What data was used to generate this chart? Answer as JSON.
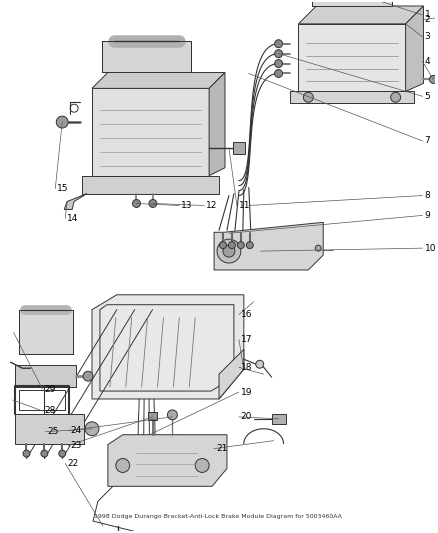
{
  "bg_color": "#ffffff",
  "line_color": "#333333",
  "label_color": "#000000",
  "title": "1998 Dodge Durango Bracket-Anti-Lock Brake Module Diagram for 5003460AA",
  "figsize": [
    4.38,
    5.33
  ],
  "dpi": 100,
  "label_fontsize": 6.5,
  "title_fontsize": 4.5,
  "lw": 0.7
}
